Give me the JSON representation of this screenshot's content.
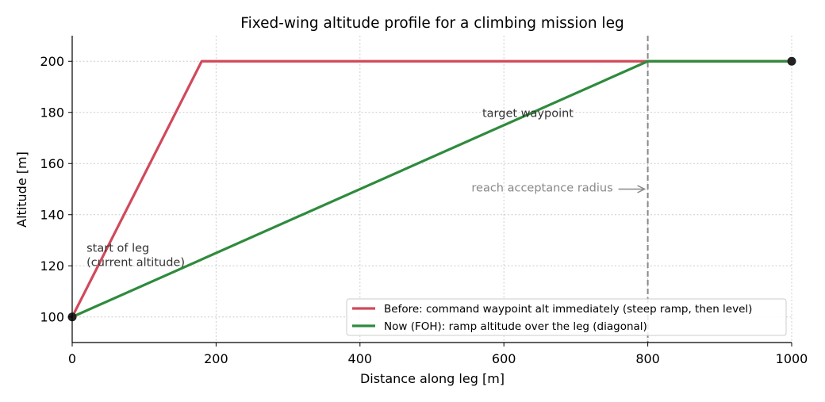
{
  "chart_data": {
    "type": "line",
    "title": "Fixed-wing altitude profile for a climbing mission leg",
    "xlabel": "Distance along leg [m]",
    "ylabel": "Altitude [m]",
    "xlim": [
      0,
      1000
    ],
    "ylim": [
      90,
      210
    ],
    "xticks": [
      0,
      200,
      400,
      600,
      800,
      1000
    ],
    "yticks": [
      100,
      120,
      140,
      160,
      180,
      200
    ],
    "grid": true,
    "legend_position": "lower-right",
    "series": [
      {
        "name": "Before: command waypoint alt immediately (steep ramp, then level)",
        "color": "#d1495b",
        "x": [
          0,
          180,
          1000
        ],
        "y": [
          100,
          200,
          200
        ]
      },
      {
        "name": "Now (FOH): ramp altitude over the leg (diagonal)",
        "color": "#2e8b3d",
        "x": [
          0,
          800,
          1000
        ],
        "y": [
          100,
          200,
          200
        ]
      }
    ],
    "markers": [
      {
        "x": 0,
        "y": 100
      },
      {
        "x": 1000,
        "y": 200
      }
    ],
    "vline": {
      "x": 800,
      "color": "#888888"
    },
    "annotations": [
      {
        "text": "start of leg",
        "x": 20,
        "y": 125.5
      },
      {
        "text": "(current altitude)",
        "x": 20,
        "y": 120
      },
      {
        "text": "target waypoint",
        "x": 570,
        "y": 178.2
      },
      {
        "text": "reach acceptance radius",
        "x": 555,
        "y": 149,
        "arrow_to": {
          "x": 800,
          "y": 150
        }
      }
    ]
  }
}
